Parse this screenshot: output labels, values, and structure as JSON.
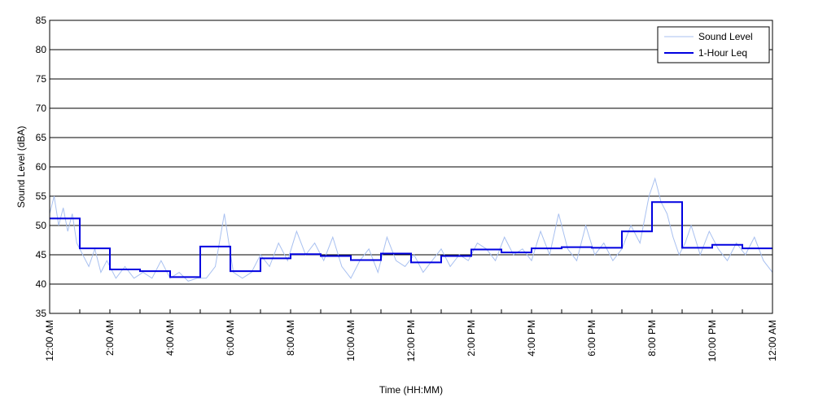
{
  "chart_data": {
    "type": "line",
    "title": "",
    "xlabel": "Time (HH:MM)",
    "ylabel": "Sound Level (dBA)",
    "ylim": [
      35,
      85
    ],
    "xlim": [
      0,
      24
    ],
    "x_unit": "hours since 12:00 AM",
    "yticks": [
      35,
      40,
      45,
      50,
      55,
      60,
      65,
      70,
      75,
      80,
      85
    ],
    "xticks": [
      0,
      2,
      4,
      6,
      8,
      10,
      12,
      14,
      16,
      18,
      20,
      22,
      24
    ],
    "xtick_labels": [
      "12:00 AM",
      "2:00 AM",
      "4:00 AM",
      "6:00 AM",
      "8:00 AM",
      "10:00 AM",
      "12:00 PM",
      "2:00 PM",
      "4:00 PM",
      "6:00 PM",
      "8:00 PM",
      "10:00 PM",
      "12:00 AM"
    ],
    "x_minor_ticks": [
      1,
      3,
      5,
      7,
      9,
      11,
      13,
      15,
      17,
      19,
      21,
      23
    ],
    "grid": "horizontal",
    "legend_position": "top-right",
    "series": [
      {
        "name": "Sound Level",
        "kind": "line",
        "color": "#a8c0f0",
        "note": "approximate trace of fluctuating sound level (hourly min/max envelope)",
        "x": [
          0.0,
          0.15,
          0.3,
          0.45,
          0.6,
          0.75,
          0.9,
          1.1,
          1.3,
          1.5,
          1.7,
          1.9,
          2.2,
          2.5,
          2.8,
          3.1,
          3.4,
          3.7,
          4.0,
          4.3,
          4.6,
          4.9,
          5.2,
          5.5,
          5.8,
          6.1,
          6.4,
          6.7,
          7.0,
          7.3,
          7.6,
          7.9,
          8.2,
          8.5,
          8.8,
          9.1,
          9.4,
          9.7,
          10.0,
          10.3,
          10.6,
          10.9,
          11.2,
          11.5,
          11.8,
          12.1,
          12.4,
          12.7,
          13.0,
          13.3,
          13.6,
          13.9,
          14.2,
          14.5,
          14.8,
          15.1,
          15.4,
          15.7,
          16.0,
          16.3,
          16.6,
          16.9,
          17.2,
          17.5,
          17.8,
          18.1,
          18.4,
          18.7,
          19.0,
          19.3,
          19.6,
          19.9,
          20.1,
          20.3,
          20.5,
          20.7,
          20.9,
          21.1,
          21.3,
          21.6,
          21.9,
          22.2,
          22.5,
          22.8,
          23.1,
          23.4,
          23.7,
          24.0
        ],
        "values": [
          52,
          55,
          50,
          53,
          49,
          52,
          47,
          45,
          43,
          46,
          42,
          44,
          41,
          43,
          41,
          42,
          41,
          44,
          41,
          42,
          40.5,
          41,
          41,
          43,
          52,
          42,
          41,
          42,
          45,
          43,
          47,
          44,
          49,
          45,
          47,
          44,
          48,
          43,
          41,
          44,
          46,
          42,
          48,
          44,
          43,
          45,
          42,
          44,
          46,
          43,
          45,
          44,
          47,
          46,
          44,
          48,
          45,
          46,
          44,
          49,
          45,
          52,
          46,
          44,
          50,
          45,
          47,
          44,
          46,
          50,
          47,
          55,
          58,
          54,
          52,
          48,
          45,
          47,
          50,
          45,
          49,
          46,
          44,
          47,
          45,
          48,
          44,
          42
        ]
      },
      {
        "name": "1-Hour Leq",
        "kind": "step",
        "color": "#0000e0",
        "x": [
          0,
          1,
          2,
          3,
          4,
          5,
          6,
          7,
          8,
          9,
          10,
          11,
          12,
          13,
          14,
          15,
          16,
          17,
          18,
          19,
          20,
          21,
          22,
          23
        ],
        "values": [
          51.2,
          46.1,
          42.5,
          42.2,
          41.2,
          46.4,
          42.2,
          44.4,
          45.1,
          44.8,
          44.1,
          45.2,
          43.7,
          44.8,
          45.9,
          45.4,
          46.1,
          46.3,
          46.2,
          49.0,
          54.0,
          46.2,
          46.7,
          46.1
        ]
      }
    ]
  }
}
